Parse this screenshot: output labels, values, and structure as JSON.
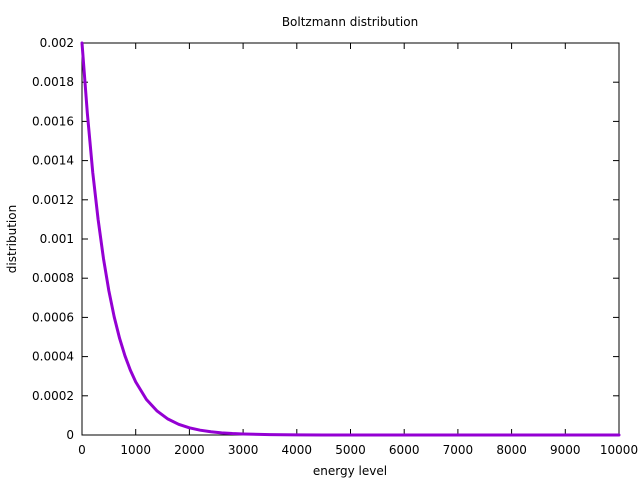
{
  "chart_data": {
    "type": "line",
    "title": "Boltzmann distribution",
    "xlabel": "energy level",
    "ylabel": "distribution",
    "xlim": [
      0,
      10000
    ],
    "ylim": [
      0,
      0.002
    ],
    "x_ticks": [
      "0",
      "1000",
      "2000",
      "3000",
      "4000",
      "5000",
      "6000",
      "7000",
      "8000",
      "9000",
      "10000"
    ],
    "y_ticks": [
      "0",
      "0.0002",
      "0.0004",
      "0.0006",
      "0.0008",
      "0.001",
      "0.0012",
      "0.0014",
      "0.0016",
      "0.0018",
      "0.002"
    ],
    "grid": false,
    "legend": "none",
    "series": [
      {
        "color": "#9400d3",
        "x": [
          0,
          100,
          200,
          300,
          400,
          500,
          600,
          700,
          800,
          900,
          1000,
          1200,
          1400,
          1600,
          1800,
          2000,
          2200,
          2400,
          2600,
          2800,
          3000,
          3500,
          4000,
          4500,
          5000,
          6000,
          7000,
          8000,
          9000,
          10000
        ],
        "y": [
          0.002,
          0.00164,
          0.00134,
          0.0011,
          0.0009,
          0.000736,
          0.000602,
          0.000493,
          0.000404,
          0.000331,
          0.000271,
          0.000181,
          0.000122,
          8.15e-05,
          5.46e-05,
          3.66e-05,
          2.46e-05,
          1.65e-05,
          1.1e-05,
          7.4e-06,
          5e-06,
          1.8e-06,
          7e-07,
          2e-07,
          1e-07,
          0.0,
          0.0,
          0.0,
          0.0,
          0.0
        ]
      }
    ]
  }
}
